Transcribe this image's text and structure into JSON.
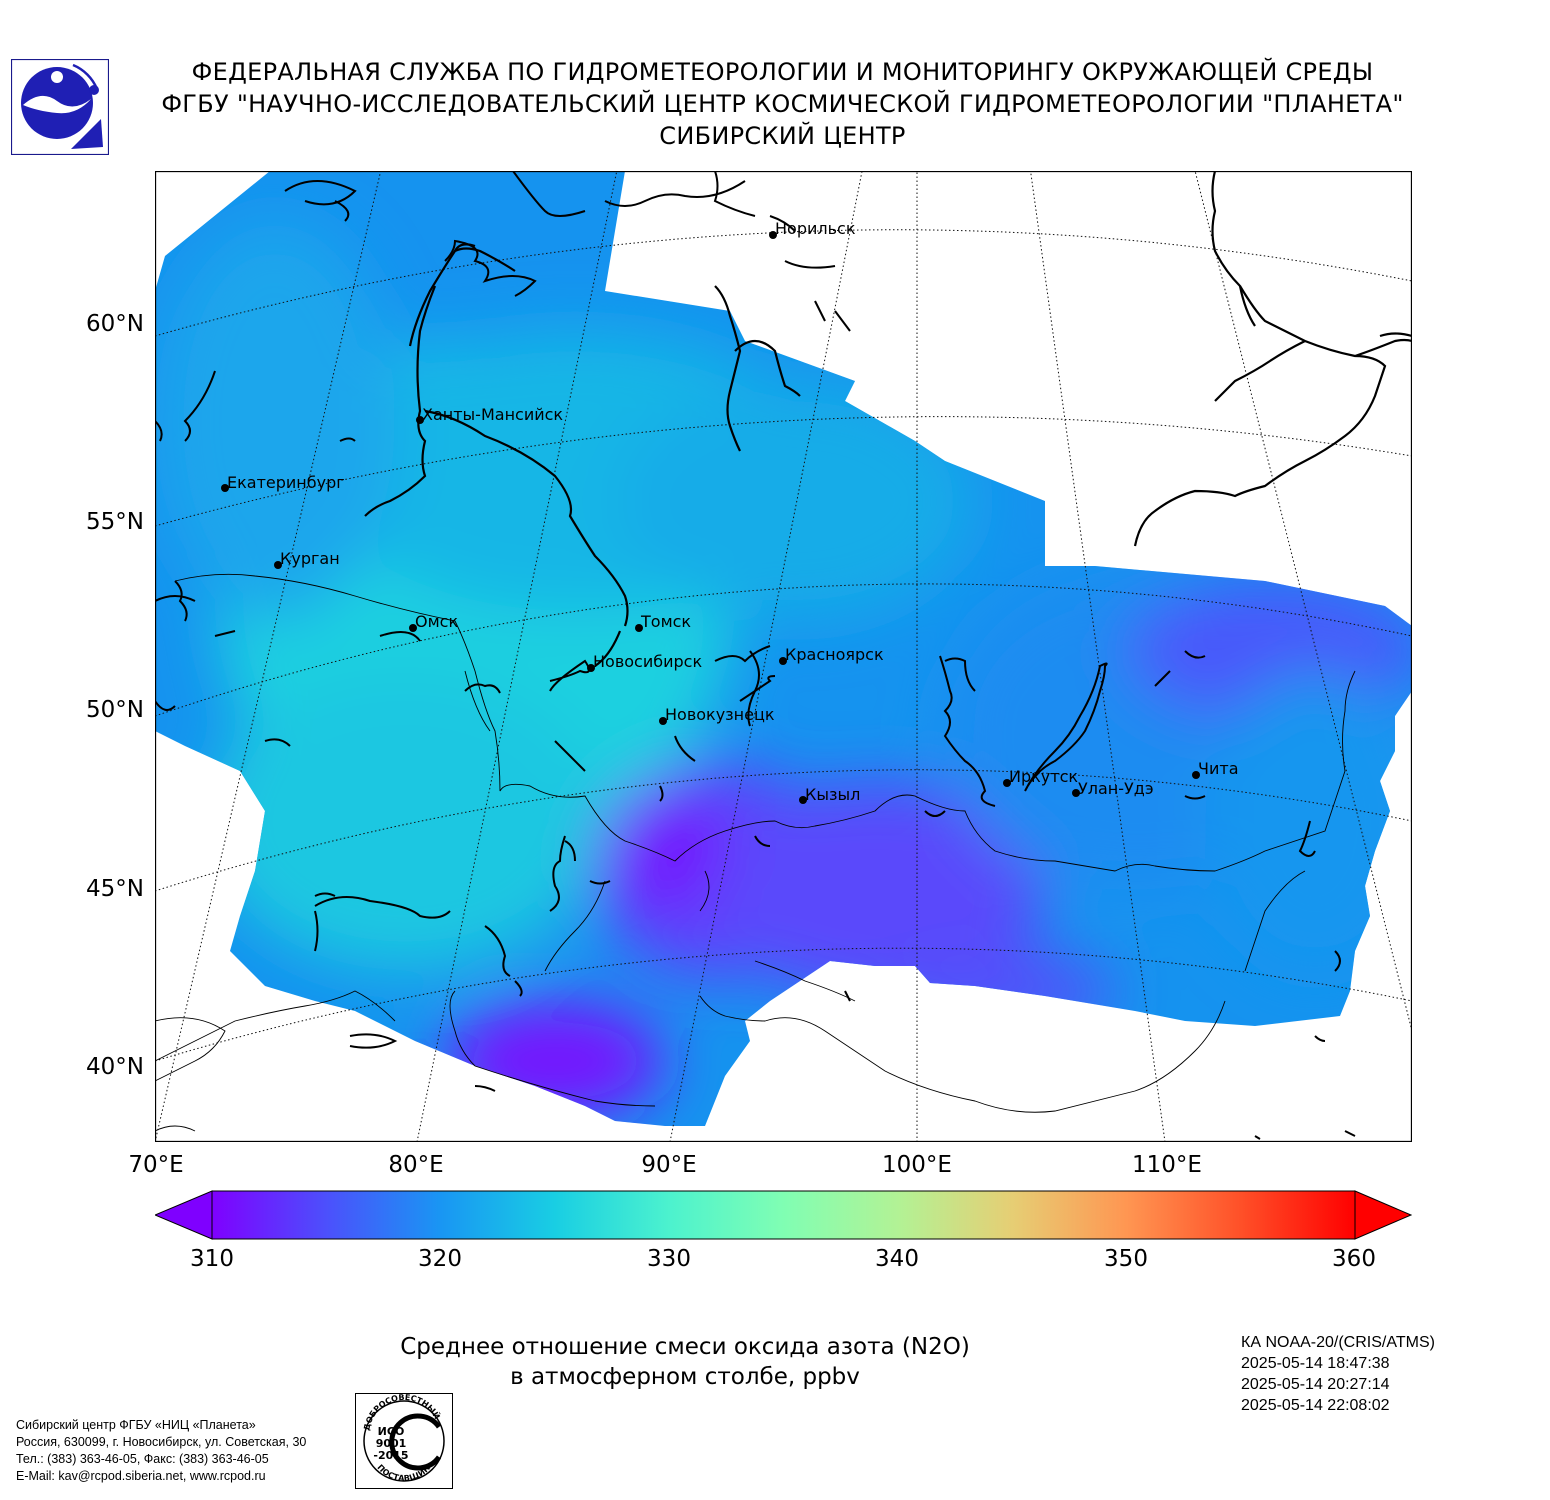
{
  "header": {
    "line1": "ФЕДЕРАЛЬНАЯ СЛУЖБА ПО ГИДРОМЕТЕОРОЛОГИИ И МОНИТОРИНГУ ОКРУЖАЮЩЕЙ СРЕДЫ",
    "line2": "ФГБУ \"НАУЧНО-ИССЛЕДОВАТЕЛЬСКИЙ ЦЕНТР КОСМИЧЕСКОЙ ГИДРОМЕТЕОРОЛОГИИ \"ПЛАНЕТА\"",
    "line3": "СИБИРСКИЙ ЦЕНТР"
  },
  "map": {
    "lat_labels": [
      "60°N",
      "55°N",
      "50°N",
      "45°N",
      "40°N"
    ],
    "lon_labels": [
      "70°E",
      "80°E",
      "90°E",
      "100°E",
      "110°E"
    ],
    "cities": [
      {
        "name": "Норильск"
      },
      {
        "name": "Ханты-Мансийск"
      },
      {
        "name": "Екатеринбург"
      },
      {
        "name": "Курган"
      },
      {
        "name": "Омск"
      },
      {
        "name": "Томск"
      },
      {
        "name": "Новосибирск"
      },
      {
        "name": "Красноярск"
      },
      {
        "name": "Новокузнецк"
      },
      {
        "name": "Кызыл"
      },
      {
        "name": "Иркутск"
      },
      {
        "name": "Улан-Удэ"
      },
      {
        "name": "Чита"
      }
    ]
  },
  "colorbar": {
    "labels": [
      "310",
      "320",
      "330",
      "340",
      "350",
      "360"
    ],
    "min": 310,
    "max": 360,
    "extend": "both",
    "colors": [
      "#7f00ff",
      "#4c50fc",
      "#1996f3",
      "#19cee3",
      "#4cf2ce",
      "#80feb3",
      "#b2f295",
      "#e6ce74",
      "#ff9652",
      "#ff5028",
      "#ff0000"
    ]
  },
  "caption": {
    "line1": "Среднее отношение смеси оксида азота (N2O)",
    "line2": "в атмосферном столбе, ppbv"
  },
  "satellite": {
    "line1": "КА NOAA-20/(CRIS/ATMS)",
    "line2": "2025-05-14 18:47:38",
    "line3": "2025-05-14 20:27:14",
    "line4": "2025-05-14 22:08:02"
  },
  "contact": {
    "line1": "Сибирский центр ФГБУ «НИЦ «Планета»",
    "line2": "Россия, 630099, г. Новосибирск, ул. Советская, 30",
    "line3": "Тел.: (383) 363-46-05, Факс: (383) 363-46-05",
    "line4": "E-Mail: kav@rcpod.siberia.net, www.rcpod.ru"
  },
  "iso_stamp": {
    "top_text": "ДОБРОСОВЕСТНЫЙ",
    "iso": "ИСО",
    "number": "9001",
    "year": "-2015",
    "bottom_text": "ПОСТАВЩИК"
  }
}
